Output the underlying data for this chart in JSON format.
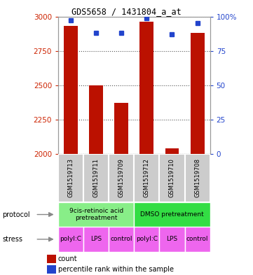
{
  "title": "GDS5658 / 1431804_a_at",
  "samples": [
    "GSM1519713",
    "GSM1519711",
    "GSM1519709",
    "GSM1519712",
    "GSM1519710",
    "GSM1519708"
  ],
  "counts": [
    2930,
    2500,
    2370,
    2960,
    2040,
    2880
  ],
  "percentile_ranks": [
    97,
    88,
    88,
    99,
    87,
    95
  ],
  "ylim_left": [
    2000,
    3000
  ],
  "ylim_right": [
    0,
    100
  ],
  "yticks_left": [
    2000,
    2250,
    2500,
    2750,
    3000
  ],
  "yticks_right": [
    0,
    25,
    50,
    75,
    100
  ],
  "bar_color": "#bb1100",
  "dot_color": "#2244cc",
  "protocol_labels": [
    "9cis-retinoic acid\npretreatment",
    "DMSO pretreatment"
  ],
  "protocol_color_left": "#88ee88",
  "protocol_color_right": "#33dd44",
  "stress_labels": [
    "polyI:C",
    "LPS",
    "control",
    "polyI:C",
    "LPS",
    "control"
  ],
  "stress_color": "#ee66ee",
  "sample_bg": "#cccccc",
  "sample_border": "#ffffff",
  "protocol_label": "protocol",
  "stress_label": "stress",
  "legend_count": "count",
  "legend_pct": "percentile rank within the sample",
  "background_color": "#ffffff",
  "plot_bg": "#ffffff",
  "grid_color": "#555555",
  "left_tick_color": "#cc2200",
  "right_tick_color": "#2244cc",
  "arrow_color": "#888888"
}
